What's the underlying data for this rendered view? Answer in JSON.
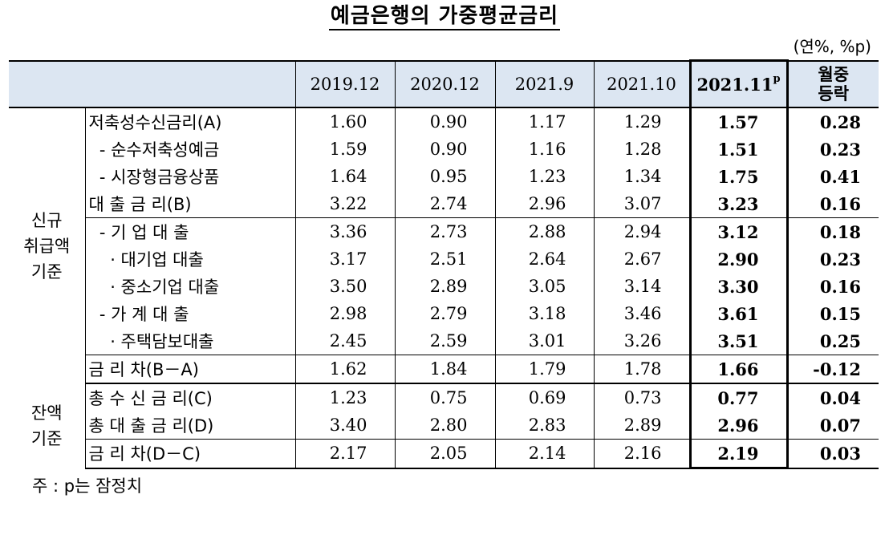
{
  "title": "예금은행의 가중평균금리",
  "unit": "(연%, %p)",
  "columns": [
    "2019.12",
    "2020.12",
    "2021.9",
    "2021.10"
  ],
  "highlight_column": {
    "label": "2021.11",
    "sup": "p"
  },
  "change_column": {
    "line1": "월중",
    "line2": "등락"
  },
  "groups": {
    "new": {
      "line1": "신규",
      "line2": "취급액",
      "line3": "기준"
    },
    "balance": {
      "line1": "잔액",
      "line2": "기준"
    }
  },
  "rows": [
    {
      "label": "저축성수신금리(A)",
      "values": [
        "1.60",
        "0.90",
        "1.17",
        "1.29"
      ],
      "latest": "1.57",
      "change": "0.28"
    },
    {
      "label": "  - 순수저축성예금",
      "values": [
        "1.59",
        "0.90",
        "1.16",
        "1.28"
      ],
      "latest": "1.51",
      "change": "0.23"
    },
    {
      "label": "  - 시장형금융상품",
      "values": [
        "1.64",
        "0.95",
        "1.23",
        "1.34"
      ],
      "latest": "1.75",
      "change": "0.41"
    },
    {
      "label": "대 출 금 리(B)",
      "values": [
        "3.22",
        "2.74",
        "2.96",
        "3.07"
      ],
      "latest": "3.23",
      "change": "0.16"
    },
    {
      "label": "  - 기 업 대 출",
      "values": [
        "3.36",
        "2.73",
        "2.88",
        "2.94"
      ],
      "latest": "3.12",
      "change": "0.18"
    },
    {
      "label": "    · 대기업 대출",
      "values": [
        "3.17",
        "2.51",
        "2.64",
        "2.67"
      ],
      "latest": "2.90",
      "change": "0.23"
    },
    {
      "label": "    · 중소기업 대출",
      "values": [
        "3.50",
        "2.89",
        "3.05",
        "3.14"
      ],
      "latest": "3.30",
      "change": "0.16"
    },
    {
      "label": "  - 가 계 대 출",
      "values": [
        "2.98",
        "2.79",
        "3.18",
        "3.46"
      ],
      "latest": "3.61",
      "change": "0.15"
    },
    {
      "label": "    · 주택담보대출",
      "values": [
        "2.45",
        "2.59",
        "3.01",
        "3.26"
      ],
      "latest": "3.51",
      "change": "0.25"
    },
    {
      "label": "금 리 차(B－A)",
      "values": [
        "1.62",
        "1.84",
        "1.79",
        "1.78"
      ],
      "latest": "1.66",
      "change": "-0.12"
    },
    {
      "label": "총 수 신 금 리(C)",
      "values": [
        "1.23",
        "0.75",
        "0.69",
        "0.73"
      ],
      "latest": "0.77",
      "change": "0.04"
    },
    {
      "label": "총 대 출 금 리(D)",
      "values": [
        "3.40",
        "2.80",
        "2.83",
        "2.89"
      ],
      "latest": "2.96",
      "change": "0.07"
    },
    {
      "label": "금 리 차(D－C)",
      "values": [
        "2.17",
        "2.05",
        "2.14",
        "2.16"
      ],
      "latest": "2.19",
      "change": "0.03"
    }
  ],
  "note": "주 : p는 잠정치"
}
